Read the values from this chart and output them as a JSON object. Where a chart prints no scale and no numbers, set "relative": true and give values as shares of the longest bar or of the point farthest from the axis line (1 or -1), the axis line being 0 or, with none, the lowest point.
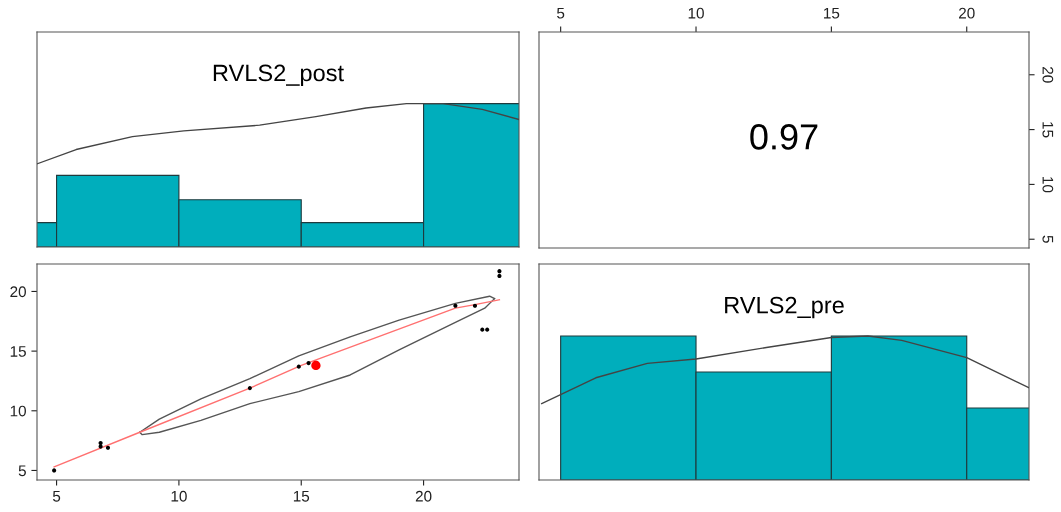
{
  "chart_data": [
    {
      "type": "histogram",
      "title": "RVLS2_post",
      "relative": true,
      "tick_labels": false,
      "xlim": [
        4.2,
        23.9
      ],
      "xticks": [
        5,
        10,
        15,
        20
      ],
      "color": "#00aebc",
      "bins": [
        0,
        5,
        10,
        15,
        20,
        25
      ],
      "values": [
        0.17,
        0.5,
        0.33,
        0.17,
        1
      ],
      "series": [
        {
          "type": "line",
          "color": "#444444",
          "x": [
            4.2,
            5.8,
            8.1,
            10.2,
            13.3,
            15.6,
            17.65,
            19.3,
            20.8,
            22.4,
            23.9
          ],
          "values": [
            0.58,
            0.68,
            0.77,
            0.81,
            0.85,
            0.91,
            0.97,
            1.0,
            1.0,
            0.96,
            0.89
          ]
        }
      ]
    },
    {
      "type": "scatter",
      "annotations": [
        "0.97"
      ],
      "xlim": [
        4.2,
        22.3
      ],
      "xticks": [
        5,
        10,
        15,
        20
      ],
      "ylim": [
        4.2,
        23.9
      ],
      "yticks": [
        5,
        10,
        15,
        20
      ]
    },
    {
      "type": "scatter",
      "xlim": [
        4.2,
        23.9
      ],
      "xticks": [
        5,
        10,
        15,
        20
      ],
      "ylim": [
        4.2,
        22.3
      ],
      "yticks": [
        5,
        10,
        15,
        20
      ],
      "series": [
        {
          "type": "line",
          "color": "#555555",
          "x": [
            8.4,
            9.2,
            10.9,
            12.9,
            14.9,
            17.0,
            19.0,
            21.3,
            22.7,
            22.9
          ],
          "values": [
            8.2,
            9.3,
            11.0,
            12.7,
            14.6,
            16.2,
            17.6,
            19.0,
            19.6,
            19.4
          ]
        },
        {
          "type": "line",
          "color": "#555555",
          "x": [
            8.4,
            8.5,
            9.2,
            10.9,
            12.9,
            14.9,
            17.0,
            19.0,
            21.3,
            22.5,
            22.9
          ],
          "values": [
            8.2,
            8.0,
            8.2,
            9.2,
            10.6,
            11.6,
            13.0,
            15.1,
            17.4,
            18.6,
            19.4
          ]
        },
        {
          "type": "line",
          "color": "#ff7070",
          "x": [
            4.9,
            8.4,
            12.9,
            15.0,
            21.3,
            22.1,
            23.1
          ],
          "values": [
            5.3,
            8.2,
            11.9,
            13.8,
            18.6,
            18.9,
            19.3
          ]
        },
        {
          "type": "scatter",
          "marker": "circle",
          "color": "#000000",
          "x": [
            4.9,
            6.8,
            6.8,
            7.1,
            12.9,
            14.9,
            15.3,
            21.3,
            22.1,
            22.4,
            22.6,
            23.1,
            23.1
          ],
          "values": [
            5.0,
            7.3,
            7.0,
            6.9,
            11.9,
            13.7,
            14.0,
            18.8,
            18.8,
            16.8,
            16.8,
            21.7,
            21.3
          ]
        },
        {
          "type": "scatter",
          "marker": "circle",
          "color": "#ff0000",
          "x": [
            15.6
          ],
          "values": [
            13.8
          ]
        }
      ]
    },
    {
      "type": "histogram",
      "title": "RVLS2_pre",
      "relative": true,
      "tick_labels": false,
      "xlim": [
        4.2,
        22.3
      ],
      "xticks": [
        5,
        10,
        15,
        20
      ],
      "color": "#00aebc",
      "bins": [
        5,
        10,
        15,
        20,
        25
      ],
      "values": [
        1,
        0.75,
        1,
        0.5
      ],
      "series": [
        {
          "type": "line",
          "color": "#444444",
          "x": [
            4.3,
            6.3,
            8.2,
            10.0,
            12.6,
            15.0,
            16.35,
            17.6,
            20.0,
            22.3
          ],
          "values": [
            0.53,
            0.71,
            0.81,
            0.84,
            0.92,
            0.99,
            1.0,
            0.97,
            0.85,
            0.64
          ]
        }
      ]
    }
  ]
}
